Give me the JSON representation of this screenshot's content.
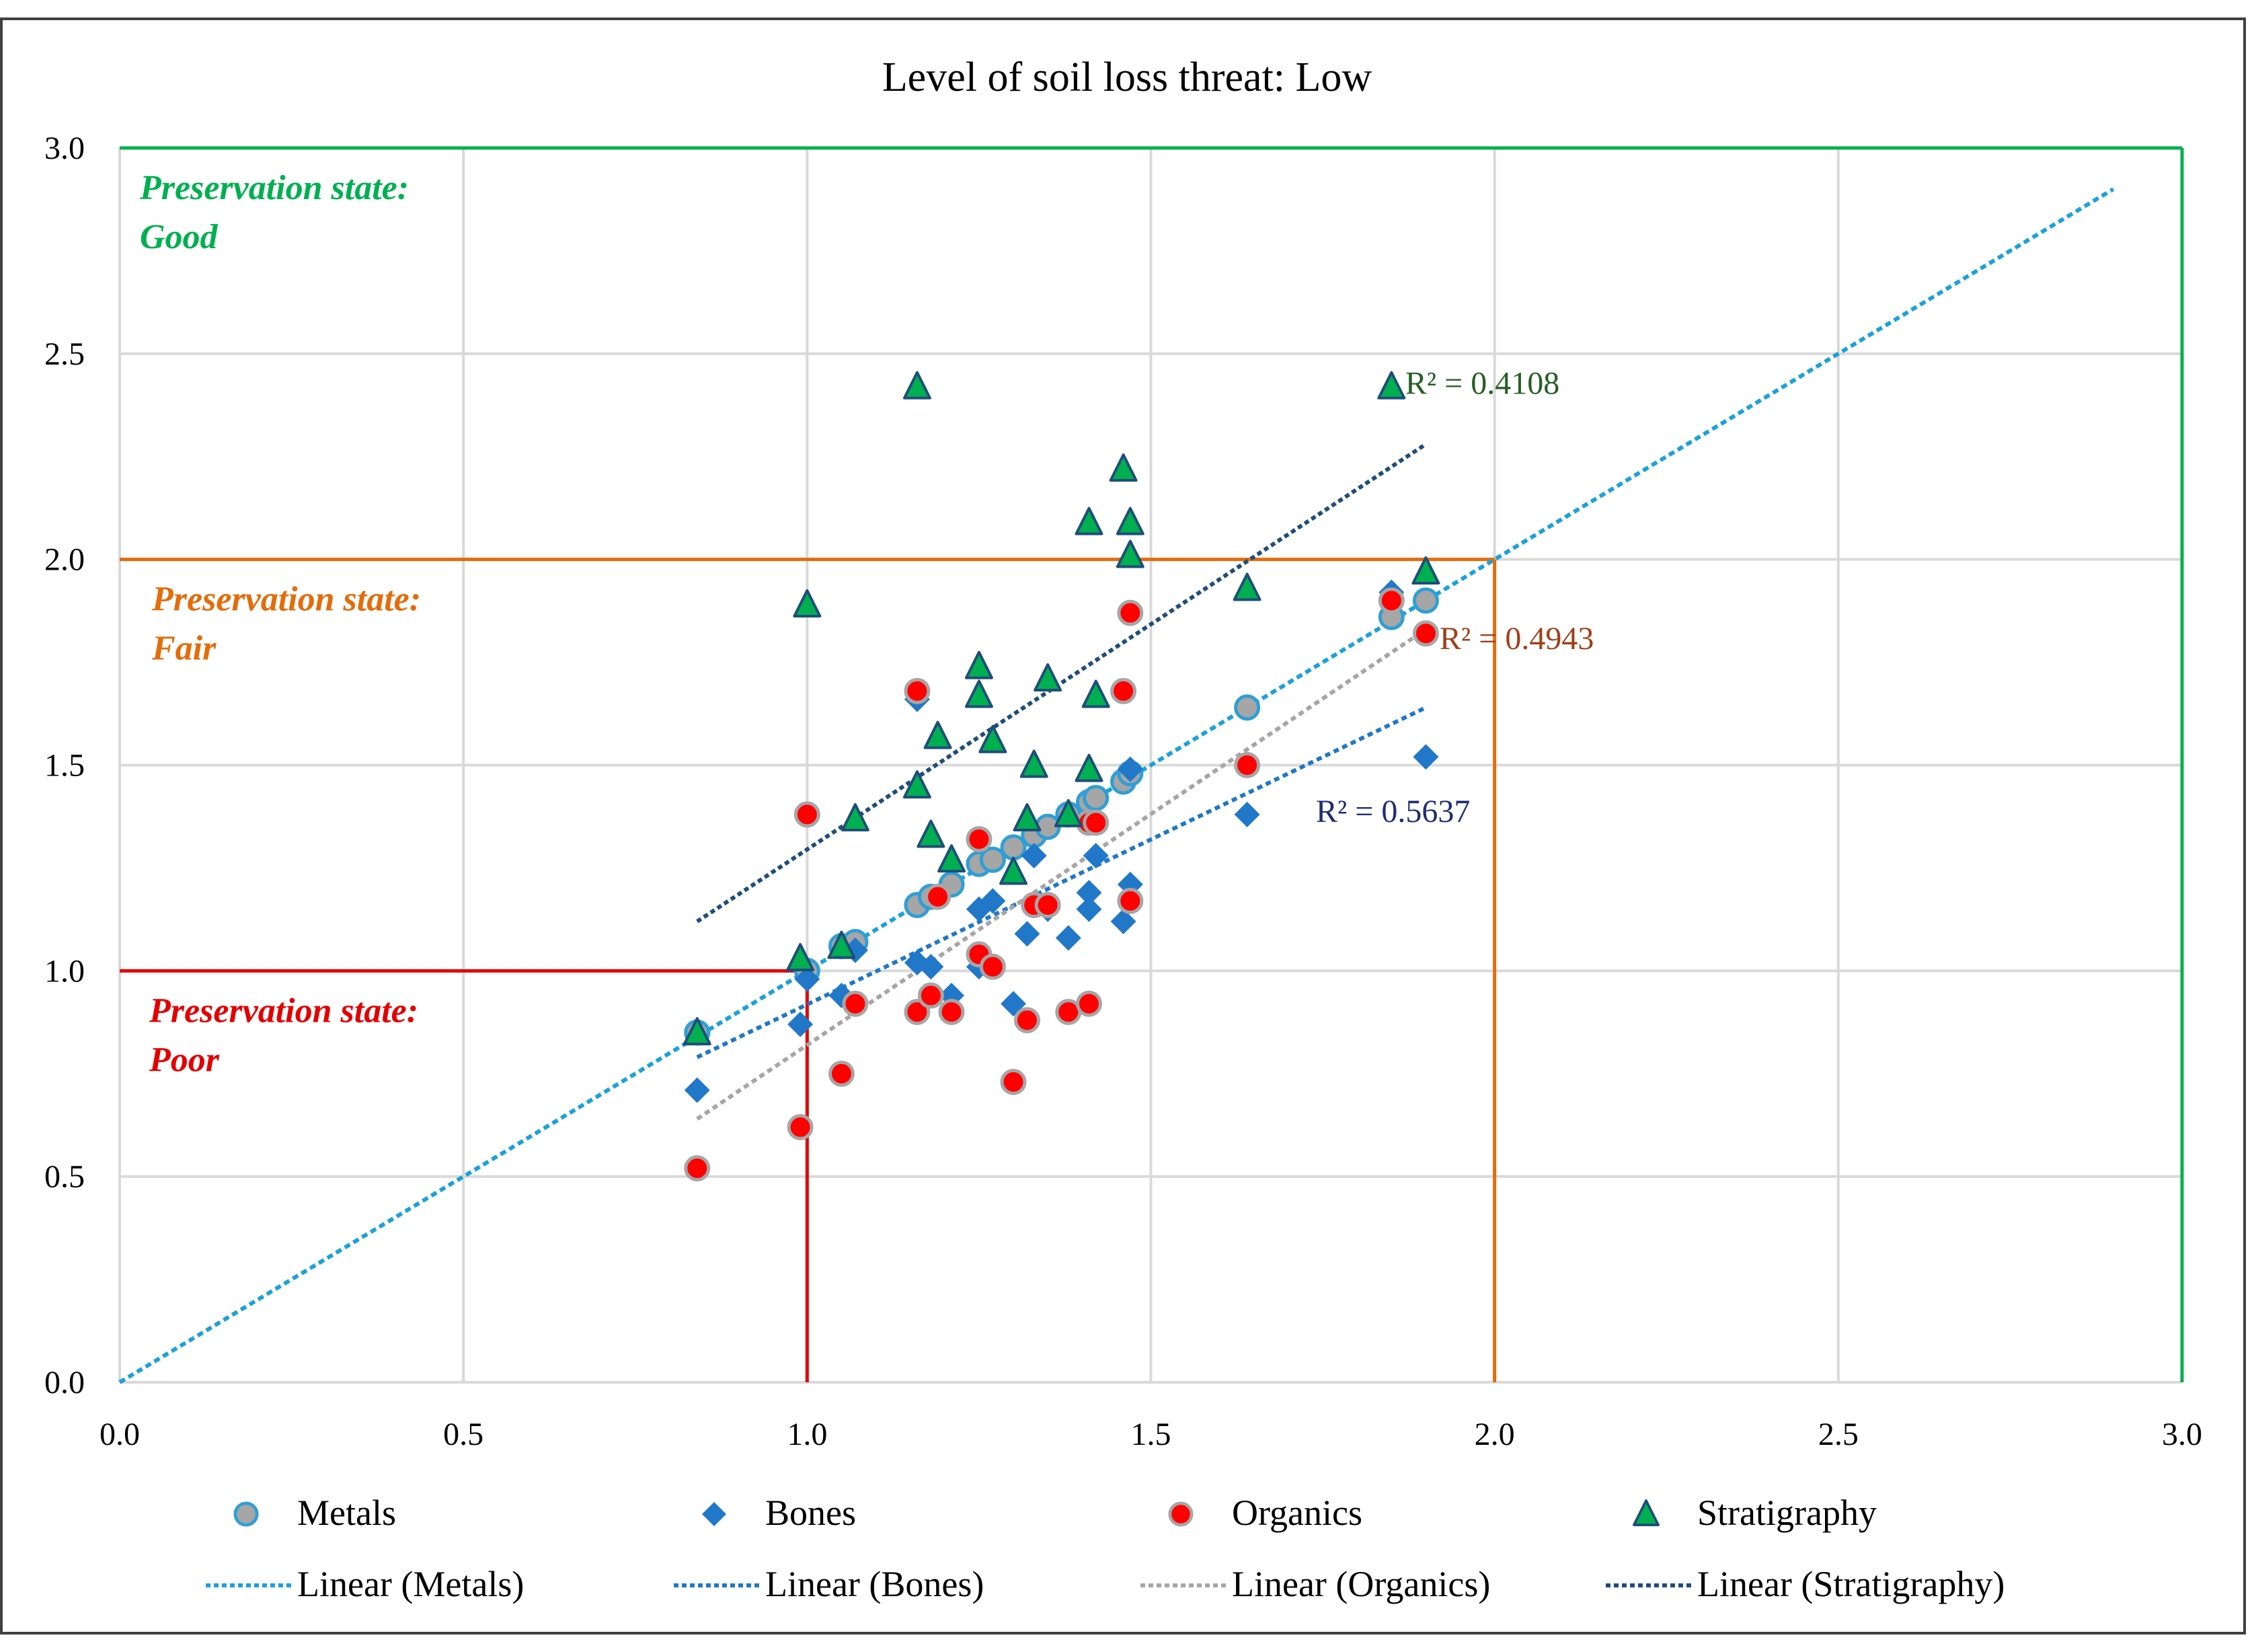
{
  "chart_data": {
    "type": "scatter",
    "title": "Level of soil loss threat: Low",
    "xlabel": "",
    "ylabel": "",
    "xlim": [
      0,
      3
    ],
    "ylim": [
      0,
      3
    ],
    "grid": true,
    "x_ticks": [
      "0.0",
      "0.5",
      "1.0",
      "1.5",
      "2.0",
      "2.5",
      "3.0"
    ],
    "y_ticks": [
      "0.0",
      "0.5",
      "1.0",
      "1.5",
      "2.0",
      "2.5",
      "3.0"
    ],
    "legend_position": "bottom",
    "series": [
      {
        "name": "Metals",
        "marker": "circle",
        "color": "#a6a6a6",
        "edge": "#2e9fd6",
        "points": [
          [
            0.84,
            0.85
          ],
          [
            1.0,
            1.0
          ],
          [
            1.05,
            1.06
          ],
          [
            1.07,
            1.07
          ],
          [
            1.16,
            1.16
          ],
          [
            1.18,
            1.18
          ],
          [
            1.21,
            1.21
          ],
          [
            1.25,
            1.26
          ],
          [
            1.27,
            1.27
          ],
          [
            1.3,
            1.3
          ],
          [
            1.33,
            1.33
          ],
          [
            1.35,
            1.35
          ],
          [
            1.38,
            1.38
          ],
          [
            1.41,
            1.41
          ],
          [
            1.42,
            1.42
          ],
          [
            1.46,
            1.46
          ],
          [
            1.47,
            1.48
          ],
          [
            1.64,
            1.64
          ],
          [
            1.85,
            1.86
          ],
          [
            1.9,
            1.9
          ]
        ],
        "trendline": {
          "label": "Linear (Metals)",
          "x": [
            0,
            2.9
          ],
          "y": [
            0,
            2.9
          ],
          "color": "#1ba1db"
        }
      },
      {
        "name": "Bones",
        "marker": "diamond",
        "color": "#2178c9",
        "points": [
          [
            0.84,
            0.71
          ],
          [
            0.99,
            0.87
          ],
          [
            1.0,
            0.98
          ],
          [
            1.05,
            0.94
          ],
          [
            1.07,
            1.05
          ],
          [
            1.16,
            1.02
          ],
          [
            1.16,
            1.66
          ],
          [
            1.18,
            1.01
          ],
          [
            1.21,
            0.94
          ],
          [
            1.25,
            1.15
          ],
          [
            1.25,
            1.01
          ],
          [
            1.27,
            1.17
          ],
          [
            1.3,
            0.92
          ],
          [
            1.32,
            1.09
          ],
          [
            1.33,
            1.28
          ],
          [
            1.35,
            1.15
          ],
          [
            1.38,
            1.08
          ],
          [
            1.41,
            1.19
          ],
          [
            1.41,
            1.15
          ],
          [
            1.42,
            1.28
          ],
          [
            1.46,
            1.12
          ],
          [
            1.47,
            1.21
          ],
          [
            1.47,
            1.49
          ],
          [
            1.64,
            1.38
          ],
          [
            1.85,
            1.92
          ],
          [
            1.9,
            1.52
          ]
        ],
        "trendline": {
          "label": "Linear (Bones)",
          "x": [
            0.84,
            1.9
          ],
          "y": [
            0.79,
            1.64
          ],
          "color": "#1f78c8"
        },
        "r2": "R² = 0.5637"
      },
      {
        "name": "Organics",
        "marker": "circle",
        "color": "#ff0000",
        "edge": "#a6a6a6",
        "points": [
          [
            0.84,
            0.52
          ],
          [
            0.99,
            0.62
          ],
          [
            1.0,
            1.38
          ],
          [
            1.05,
            0.75
          ],
          [
            1.07,
            0.92
          ],
          [
            1.16,
            0.9
          ],
          [
            1.16,
            1.68
          ],
          [
            1.18,
            0.94
          ],
          [
            1.19,
            1.18
          ],
          [
            1.21,
            0.9
          ],
          [
            1.25,
            1.32
          ],
          [
            1.25,
            1.04
          ],
          [
            1.27,
            1.01
          ],
          [
            1.3,
            0.73
          ],
          [
            1.32,
            0.88
          ],
          [
            1.33,
            1.16
          ],
          [
            1.35,
            1.16
          ],
          [
            1.38,
            0.9
          ],
          [
            1.41,
            0.92
          ],
          [
            1.41,
            1.36
          ],
          [
            1.42,
            1.36
          ],
          [
            1.46,
            1.68
          ],
          [
            1.47,
            1.87
          ],
          [
            1.47,
            1.17
          ],
          [
            1.64,
            1.5
          ],
          [
            1.85,
            1.9
          ],
          [
            1.9,
            1.82
          ]
        ],
        "trendline": {
          "label": "Linear (Organics)",
          "x": [
            0.84,
            1.9
          ],
          "y": [
            0.64,
            1.83
          ],
          "color": "#a6a6a6"
        },
        "r2": "R² = 0.4943"
      },
      {
        "name": "Stratigraphy",
        "marker": "triangle",
        "color": "#00b050",
        "edge": "#1f4e79",
        "points": [
          [
            0.84,
            0.85
          ],
          [
            0.99,
            1.03
          ],
          [
            1.0,
            1.89
          ],
          [
            1.05,
            1.06
          ],
          [
            1.07,
            1.37
          ],
          [
            1.16,
            2.42
          ],
          [
            1.16,
            1.45
          ],
          [
            1.18,
            1.33
          ],
          [
            1.19,
            1.57
          ],
          [
            1.21,
            1.27
          ],
          [
            1.25,
            1.74
          ],
          [
            1.25,
            1.67
          ],
          [
            1.27,
            1.56
          ],
          [
            1.3,
            1.24
          ],
          [
            1.32,
            1.37
          ],
          [
            1.33,
            1.5
          ],
          [
            1.35,
            1.71
          ],
          [
            1.38,
            1.38
          ],
          [
            1.41,
            2.09
          ],
          [
            1.41,
            1.49
          ],
          [
            1.42,
            1.67
          ],
          [
            1.46,
            2.22
          ],
          [
            1.47,
            2.09
          ],
          [
            1.47,
            2.01
          ],
          [
            1.64,
            1.93
          ],
          [
            1.85,
            2.42
          ],
          [
            1.9,
            1.97
          ]
        ],
        "trendline": {
          "label": "Linear (Stratigraphy)",
          "x": [
            0.84,
            1.9
          ],
          "y": [
            1.12,
            2.28
          ],
          "color": "#1f4e79"
        },
        "r2": "R² = 0.4108"
      }
    ],
    "zones": [
      {
        "label_line1": "Preservation state:",
        "label_line2": "Good",
        "xmax": 3.0,
        "ymax": 3.0,
        "color": "#00b050"
      },
      {
        "label_line1": "Preservation state:",
        "label_line2": "Fair",
        "xmax": 2.0,
        "ymax": 2.0,
        "color": "#e46c0a"
      },
      {
        "label_line1": "Preservation state:",
        "label_line2": "Poor",
        "xmax": 1.0,
        "ymax": 1.0,
        "color": "#e30000"
      }
    ],
    "r2_labels": [
      {
        "text": "R² = 0.4108",
        "x": 1.87,
        "y": 2.43,
        "color": "#275e26"
      },
      {
        "text": "R² = 0.4943",
        "x": 1.92,
        "y": 1.81,
        "color": "#a0401a"
      },
      {
        "text": "R² = 0.5637",
        "x": 1.74,
        "y": 1.39,
        "color": "#1f2d73"
      }
    ]
  }
}
